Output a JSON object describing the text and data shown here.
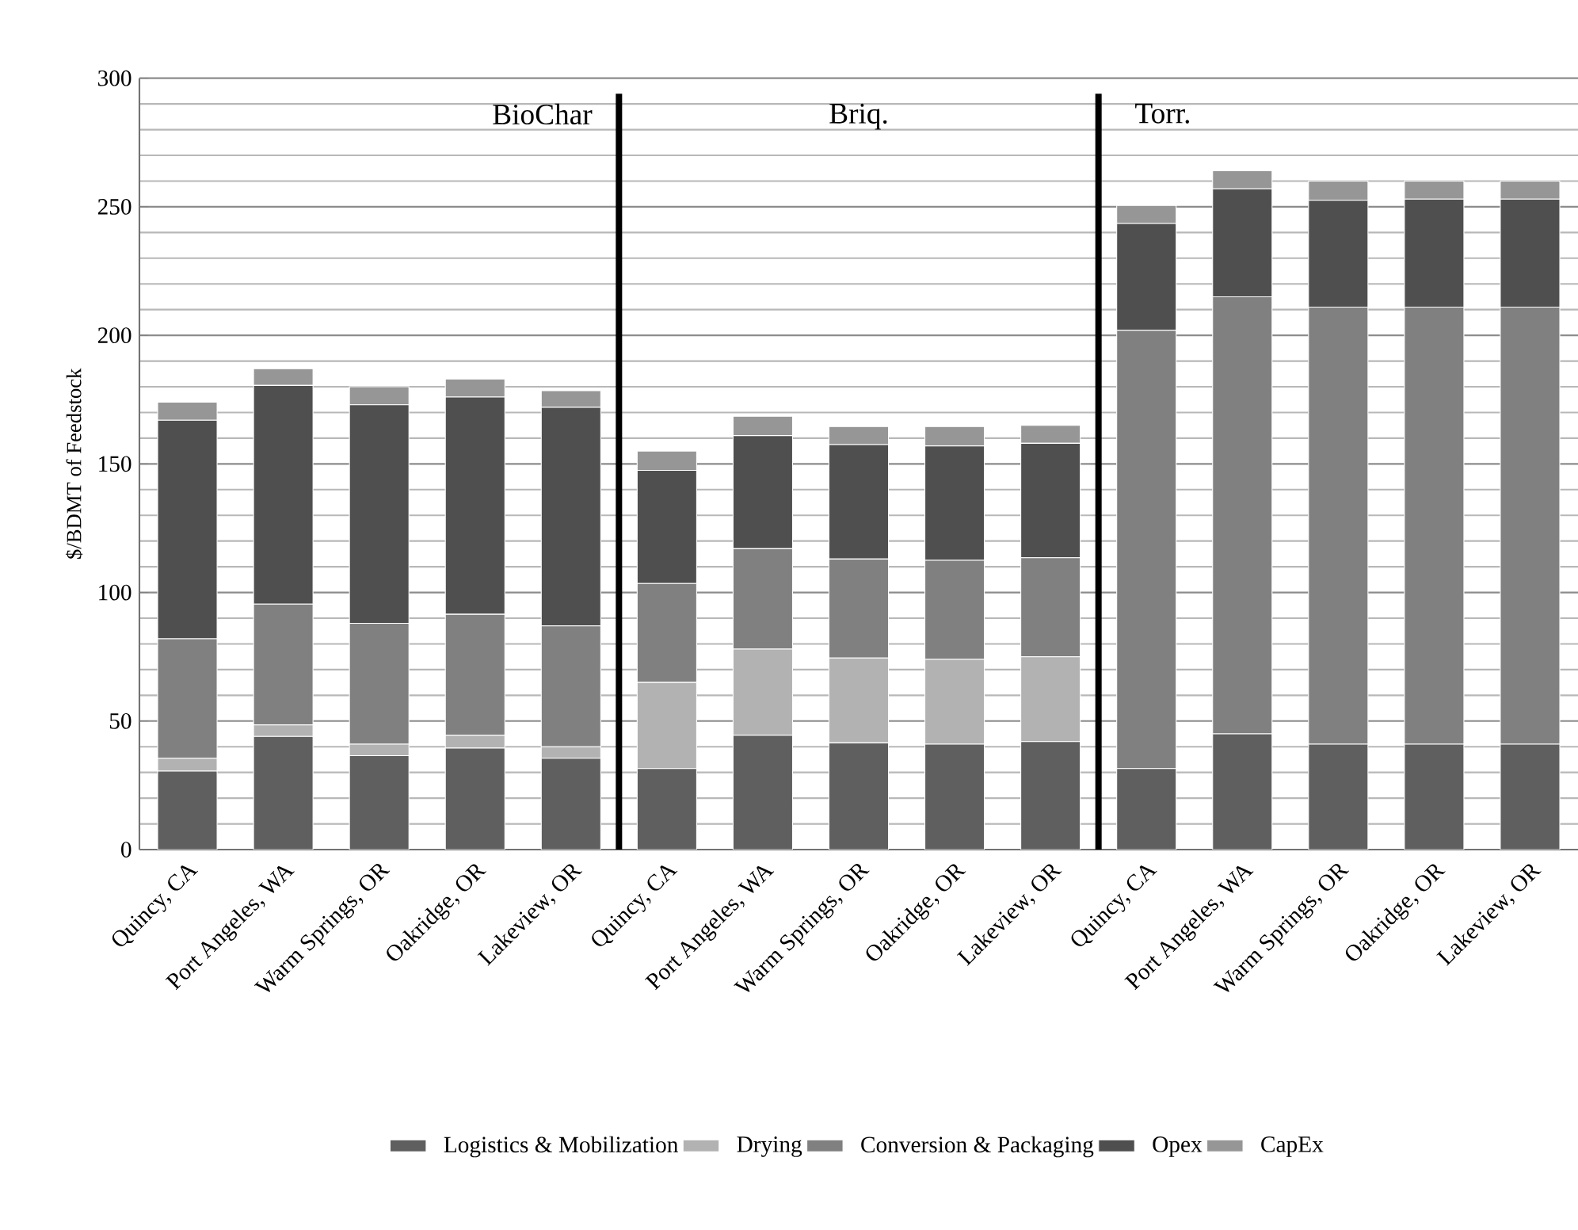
{
  "chart_data": {
    "type": "bar",
    "stacked": true,
    "ylabel": "$/BDMT of Feedstock",
    "categories": [
      "Quincy, CA",
      "Port Angeles, WA",
      "Warm Springs, OR",
      "Oakridge, OR",
      "Lakeview, OR",
      "Quincy, CA",
      "Port Angeles, WA",
      "Warm Springs, OR",
      "Oakridge, OR",
      "Lakeview, OR",
      "Quincy, CA",
      "Port Angeles, WA",
      "Warm Springs, OR",
      "Oakridge, OR",
      "Lakeview, OR"
    ],
    "series": [
      {
        "name": "Logistics & Mobilization",
        "color": "#5f5f5f",
        "values": [
          30.5,
          44,
          36.5,
          39.5,
          35.5,
          31.5,
          44.5,
          41.5,
          41,
          42,
          31.5,
          45,
          41,
          41,
          41
        ]
      },
      {
        "name": "Drying",
        "color": "#b2b2b2",
        "values": [
          5,
          4.5,
          4.5,
          5,
          4.5,
          33.5,
          33.5,
          33,
          33,
          33,
          0,
          0,
          0,
          0,
          0
        ]
      },
      {
        "name": "Conversion & Packaging",
        "color": "#808080",
        "values": [
          46.5,
          47,
          47,
          47,
          47,
          38.5,
          39,
          38.5,
          38.5,
          38.5,
          170.5,
          170,
          170,
          170,
          170
        ]
      },
      {
        "name": "Opex",
        "color": "#4f4f4f",
        "values": [
          85,
          85,
          85,
          84.5,
          85,
          44,
          44,
          44.5,
          44.5,
          44.5,
          41.5,
          42,
          41.5,
          42,
          42
        ]
      },
      {
        "name": "CapEx",
        "color": "#969696",
        "values": [
          7,
          6.5,
          7,
          7,
          6.5,
          7.5,
          7.5,
          7,
          7.5,
          7,
          7,
          7,
          7.5,
          7,
          7
        ]
      }
    ],
    "ylim": [
      0,
      300
    ],
    "yticks": [
      0,
      50,
      100,
      150,
      200,
      250,
      300
    ],
    "grid": "y",
    "legend": "bottom",
    "annotations": [
      "BioChar",
      "Briq.",
      "Torr."
    ]
  }
}
